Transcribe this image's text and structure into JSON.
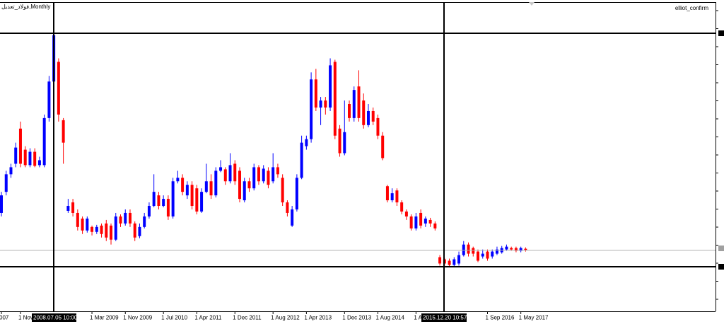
{
  "header": {
    "symbol": "فولاد_تعدیل,Monthly",
    "indicator": "elliot_confirm"
  },
  "cursor": {
    "first_time": "2008.07.05 10:00",
    "second_time": "2015.12.20 10:57"
  },
  "chart_data": {
    "type": "candlestick",
    "up_color": "#0000ff",
    "down_color": "#ff0000",
    "ylim": [
      0,
      440
    ],
    "categories": [
      "007",
      null,
      null,
      null,
      "1 Nov",
      null,
      null,
      null,
      null,
      null,
      null,
      null,
      null,
      null,
      null,
      null,
      null,
      null,
      null,
      "1 Mar 2009",
      null,
      null,
      null,
      null,
      null,
      null,
      "1 Nov 2009",
      null,
      null,
      null,
      null,
      null,
      null,
      null,
      "1 Jul 2010",
      null,
      null,
      null,
      null,
      null,
      null,
      "1 Apr 2011",
      null,
      null,
      null,
      null,
      null,
      null,
      null,
      "1 Dec 2011",
      null,
      null,
      null,
      null,
      null,
      null,
      null,
      "1 Aug 2012",
      null,
      null,
      null,
      null,
      null,
      null,
      "1 Apr 2013",
      null,
      null,
      null,
      null,
      null,
      null,
      null,
      "1 Dec 2013",
      null,
      null,
      null,
      null,
      null,
      null,
      "1 Aug 2014",
      null,
      null,
      null,
      null,
      null,
      null,
      null,
      "1 Ap",
      null,
      null,
      null,
      null,
      null,
      null,
      null,
      null,
      null,
      null,
      null,
      null,
      null,
      null,
      "1 Sep 2016",
      null,
      null,
      null,
      null,
      null,
      null,
      "1 May 2017",
      null
    ],
    "open": [
      140,
      170,
      195,
      210,
      260,
      230,
      208,
      227,
      208,
      208,
      275,
      327,
      355,
      272,
      143,
      155,
      140,
      132,
      115,
      120,
      113,
      122,
      125,
      122,
      102,
      135,
      125,
      140,
      125,
      107,
      120,
      135,
      150,
      165,
      150,
      160,
      135,
      185,
      190,
      165,
      180,
      175,
      142,
      170,
      185,
      165,
      200,
      202,
      185,
      210,
      200,
      158,
      185,
      175,
      205,
      185,
      200,
      185,
      205,
      190,
      155,
      122,
      145,
      190,
      235,
      245,
      330,
      290,
      300,
      290,
      355,
      260,
      225,
      295,
      275,
      320,
      300,
      265,
      285,
      275,
      250,
      178,
      158,
      172,
      155,
      142,
      135,
      118,
      140,
      125,
      130,
      125,
      77,
      74,
      72,
      66,
      68,
      80,
      95,
      90,
      85,
      78,
      85,
      78,
      82,
      84,
      88,
      90,
      90,
      86,
      89
    ],
    "high": [
      170,
      200,
      210,
      240,
      270,
      235,
      232,
      232,
      220,
      280,
      335,
      395,
      360,
      275,
      160,
      160,
      145,
      135,
      135,
      122,
      123,
      125,
      130,
      125,
      140,
      138,
      145,
      145,
      128,
      125,
      140,
      155,
      195,
      170,
      165,
      165,
      190,
      200,
      195,
      185,
      185,
      180,
      175,
      210,
      195,
      205,
      215,
      205,
      225,
      215,
      205,
      190,
      190,
      210,
      208,
      208,
      205,
      225,
      210,
      195,
      158,
      150,
      195,
      250,
      250,
      340,
      345,
      305,
      305,
      360,
      358,
      265,
      300,
      300,
      320,
      343,
      310,
      295,
      290,
      280,
      255,
      180,
      175,
      175,
      158,
      145,
      138,
      140,
      145,
      135,
      133,
      128,
      80,
      76,
      75,
      77,
      85,
      100,
      98,
      92,
      88,
      88,
      88,
      88,
      92,
      93,
      95,
      92,
      92,
      92,
      91
    ],
    "low": [
      135,
      165,
      190,
      205,
      205,
      205,
      205,
      205,
      205,
      205,
      270,
      320,
      270,
      210,
      140,
      135,
      115,
      110,
      112,
      108,
      110,
      105,
      100,
      95,
      100,
      120,
      122,
      120,
      100,
      104,
      118,
      132,
      148,
      145,
      148,
      130,
      132,
      182,
      165,
      160,
      145,
      138,
      140,
      168,
      160,
      162,
      198,
      180,
      182,
      180,
      155,
      155,
      170,
      172,
      180,
      182,
      175,
      182,
      190,
      150,
      135,
      120,
      142,
      188,
      230,
      240,
      285,
      265,
      280,
      285,
      245,
      220,
      222,
      270,
      270,
      270,
      260,
      262,
      265,
      245,
      215,
      155,
      155,
      150,
      138,
      130,
      115,
      115,
      118,
      120,
      120,
      115,
      65,
      65,
      63,
      63,
      65,
      78,
      78,
      78,
      70,
      75,
      72,
      75,
      80,
      82,
      86,
      86,
      84,
      84,
      85
    ],
    "close": [
      165,
      195,
      205,
      233,
      210,
      208,
      227,
      207,
      215,
      275,
      327,
      393,
      280,
      240,
      150,
      140,
      120,
      115,
      132,
      113,
      120,
      110,
      105,
      102,
      135,
      125,
      140,
      125,
      105,
      120,
      135,
      150,
      170,
      150,
      160,
      135,
      185,
      190,
      170,
      180,
      150,
      142,
      170,
      185,
      165,
      200,
      205,
      185,
      208,
      185,
      160,
      185,
      175,
      205,
      185,
      203,
      180,
      205,
      195,
      155,
      140,
      145,
      190,
      240,
      245,
      330,
      290,
      300,
      290,
      350,
      250,
      225,
      255,
      275,
      315,
      275,
      265,
      285,
      270,
      250,
      218,
      158,
      168,
      155,
      142,
      135,
      118,
      135,
      122,
      132,
      125,
      118,
      68,
      68,
      66,
      74,
      80,
      95,
      82,
      82,
      72,
      82,
      75,
      85,
      88,
      90,
      92,
      88,
      86,
      90,
      87
    ]
  }
}
